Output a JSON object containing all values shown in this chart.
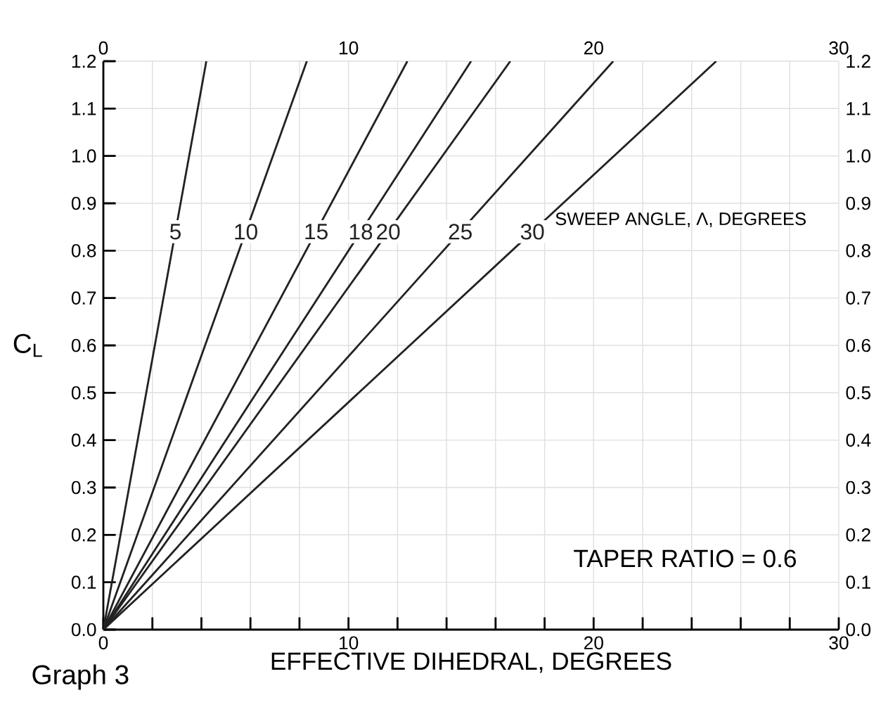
{
  "chart_data": {
    "type": "line",
    "xlabel": "EFFECTIVE DIHEDRAL, DEGREES",
    "ylabel": "C$_{L}$",
    "annotations": [
      "SWEEP ANGLE, Λ, DEGREES",
      "TAPER RATIO = 0.6",
      "Graph 3"
    ],
    "xlim": [
      0,
      30
    ],
    "xticks": [
      0,
      {
        "value": 2,
        "label": null
      },
      {
        "value": 4,
        "label": null
      },
      {
        "value": 6,
        "label": null
      },
      {
        "value": 8,
        "label": null
      },
      10,
      {
        "value": 12,
        "label": null
      },
      {
        "value": 14,
        "label": null
      },
      {
        "value": 16,
        "label": null
      },
      {
        "value": 18,
        "label": null
      },
      20,
      {
        "value": 22,
        "label": null
      },
      {
        "value": 24,
        "label": null
      },
      {
        "value": 26,
        "label": null
      },
      {
        "value": 28,
        "label": null
      },
      30
    ],
    "ylim": [
      0,
      1.2
    ],
    "yticks": [
      {
        "value": 0,
        "label": "0.0"
      },
      0.1,
      0.2,
      0.3,
      0.4,
      0.5,
      0.6,
      0.7,
      0.8,
      0.9,
      {
        "value": 1,
        "label": "1.0"
      },
      1.1,
      1.2
    ],
    "x2lim": [
      0,
      30
    ],
    "x2ticks": [
      0,
      10,
      20,
      30
    ],
    "y2lim": [
      0,
      1.2
    ],
    "y2ticks": [
      {
        "value": 0,
        "label": "0.0"
      },
      0.1,
      0.2,
      0.3,
      0.4,
      0.5,
      0.6,
      0.7,
      0.8,
      0.9,
      {
        "value": 1,
        "label": "1.0"
      },
      1.1,
      1.2
    ],
    "grid": true,
    "series": [
      {
        "name": "5",
        "color": "#222222",
        "x": [
          0,
          4.2
        ],
        "values": [
          0,
          1.2
        ]
      },
      {
        "name": "10",
        "color": "#222222",
        "x": [
          0,
          8.3
        ],
        "values": [
          0,
          1.2
        ]
      },
      {
        "name": "15",
        "color": "#222222",
        "x": [
          0,
          12.4
        ],
        "values": [
          0,
          1.2
        ]
      },
      {
        "name": "18",
        "color": "#222222",
        "x": [
          0,
          15.0
        ],
        "values": [
          0,
          1.2
        ]
      },
      {
        "name": "20",
        "color": "#222222",
        "x": [
          0,
          16.6
        ],
        "values": [
          0,
          1.2
        ]
      },
      {
        "name": "25",
        "color": "#222222",
        "x": [
          0,
          20.8
        ],
        "values": [
          0,
          1.2
        ]
      },
      {
        "name": "30",
        "color": "#222222",
        "x": [
          0,
          25.0
        ],
        "values": [
          0,
          1.2
        ]
      }
    ]
  }
}
